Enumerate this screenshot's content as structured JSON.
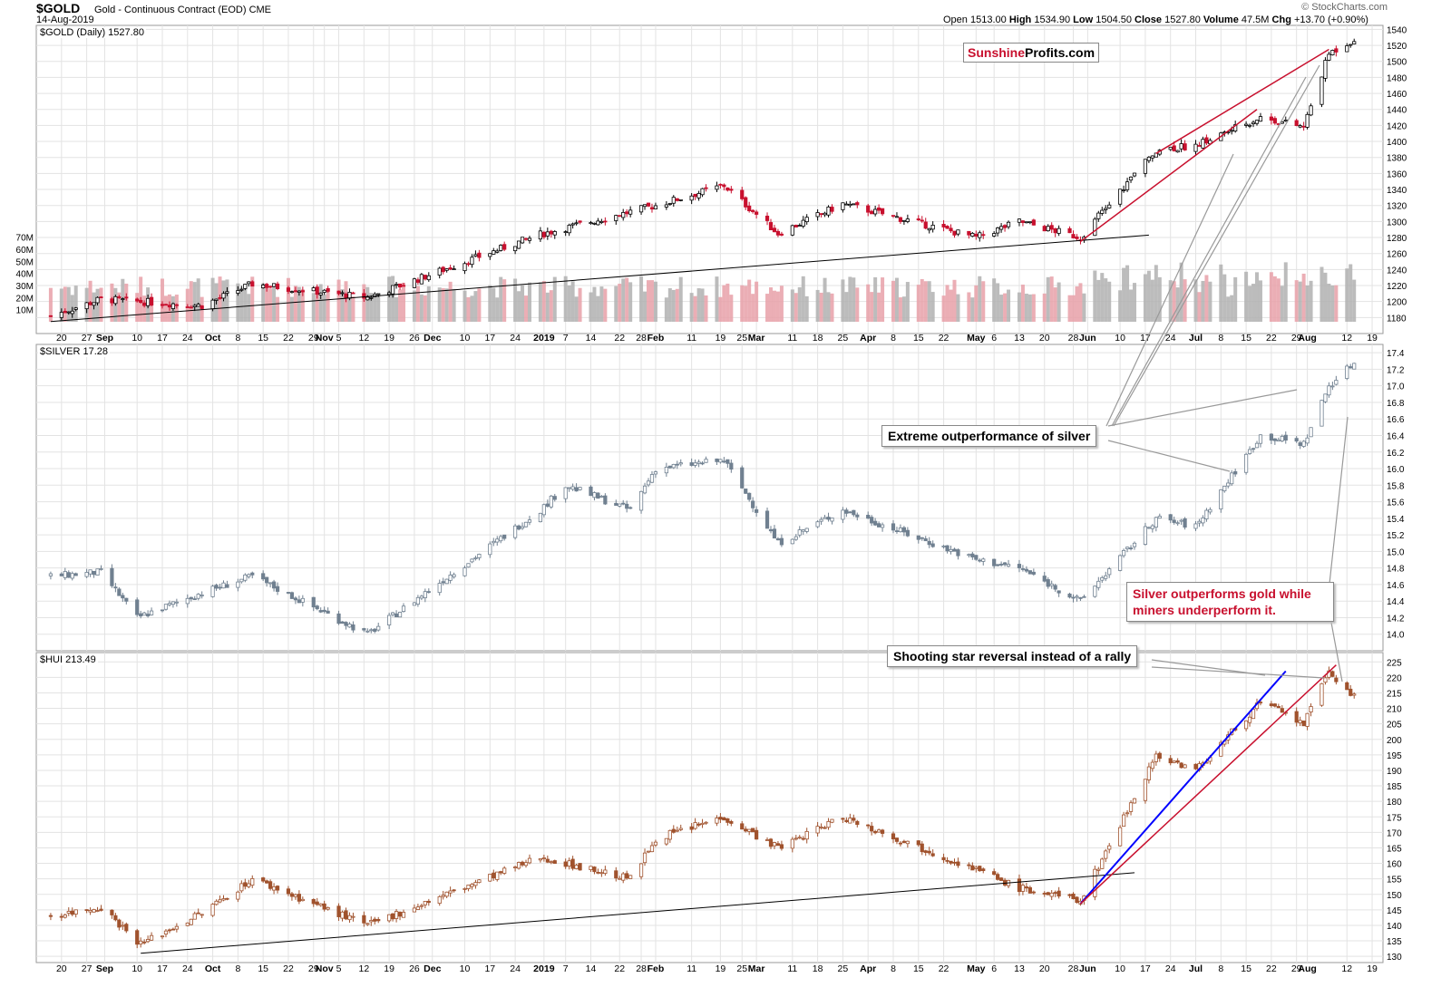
{
  "header": {
    "ticker": "$GOLD",
    "description": "Gold - Continuous Contract (EOD)",
    "exchange": "CME",
    "date": "14-Aug-2019",
    "ohlc": {
      "open_label": "Open",
      "open": "1513.00",
      "high_label": "High",
      "high": "1534.90",
      "low_label": "Low",
      "low": "1504.50",
      "close_label": "Close",
      "close": "1527.80",
      "volume_label": "Volume",
      "volume": "47.5M",
      "chg_label": "Chg",
      "chg": "+13.70 (+0.90%)"
    },
    "credit": "© StockCharts.com"
  },
  "logo": {
    "part1": "Sunshine",
    "part2": "Profits.com"
  },
  "annotations": {
    "silver_outperformance": "Extreme outperformance of silver",
    "silver_vs_miners": "Silver outperforms gold while miners underperform it.",
    "shooting_star": "Shooting star reversal instead of a rally"
  },
  "colors": {
    "up": "#ffffff",
    "down_gold": "#c8102e",
    "silver": "#708090",
    "hui": "#a0522d",
    "trend_red": "#c8102e",
    "trend_blue": "#0000ff",
    "trend_black": "#000000",
    "grid": "#e3e3e3",
    "vol_red": "#e8a0a8",
    "vol_gray": "#b0b0b0"
  },
  "x_axis": {
    "labels": [
      "20",
      "27",
      "Sep",
      "10",
      "17",
      "24",
      "Oct",
      "8",
      "15",
      "22",
      "29",
      "Nov",
      "5",
      "12",
      "19",
      "26",
      "Dec",
      "10",
      "17",
      "24",
      "2019",
      "7",
      "14",
      "22",
      "28",
      "Feb",
      "11",
      "19",
      "25",
      "Mar",
      "11",
      "18",
      "25",
      "Apr",
      "8",
      "15",
      "22",
      "May",
      "6",
      "13",
      "20",
      "28",
      "Jun",
      "10",
      "17",
      "24",
      "Jul",
      "8",
      "15",
      "22",
      "29",
      "Aug",
      "12",
      "19"
    ],
    "bold": [
      "Sep",
      "Oct",
      "Nov",
      "Dec",
      "2019",
      "Feb",
      "Mar",
      "Apr",
      "May",
      "Jun",
      "Jul",
      "Aug"
    ]
  },
  "chart_data": [
    {
      "type": "candlestick",
      "title": "$GOLD (Daily) 1527.80",
      "ylim": [
        1160,
        1545
      ],
      "yticks": [
        1180,
        1200,
        1220,
        1240,
        1260,
        1280,
        1300,
        1320,
        1340,
        1360,
        1380,
        1400,
        1420,
        1440,
        1460,
        1480,
        1500,
        1520,
        1540
      ],
      "volume_ticks": [
        "10M",
        "20M",
        "30M",
        "40M",
        "50M",
        "60M",
        "70M"
      ],
      "volume_range_m": [
        0,
        75
      ],
      "anchors": [
        {
          "x": "2018-08-17",
          "close": 1182
        },
        {
          "x": "2018-08-31",
          "close": 1203
        },
        {
          "x": "2018-09-28",
          "close": 1195
        },
        {
          "x": "2018-10-12",
          "close": 1222
        },
        {
          "x": "2018-11-13",
          "close": 1205
        },
        {
          "x": "2018-12-31",
          "close": 1284
        },
        {
          "x": "2019-02-01",
          "close": 1320
        },
        {
          "x": "2019-02-20",
          "close": 1345
        },
        {
          "x": "2019-03-07",
          "close": 1285
        },
        {
          "x": "2019-03-25",
          "close": 1322
        },
        {
          "x": "2019-05-01",
          "close": 1280
        },
        {
          "x": "2019-05-13",
          "close": 1300
        },
        {
          "x": "2019-05-30",
          "close": 1280
        },
        {
          "x": "2019-06-20",
          "close": 1390
        },
        {
          "x": "2019-07-01",
          "close": 1395
        },
        {
          "x": "2019-07-19",
          "close": 1430
        },
        {
          "x": "2019-07-31",
          "close": 1418
        },
        {
          "x": "2019-08-07",
          "close": 1510
        },
        {
          "x": "2019-08-14",
          "close": 1527.8
        }
      ]
    },
    {
      "type": "candlestick",
      "title": "$SILVER 17.28",
      "ylim": [
        13.8,
        17.5
      ],
      "yticks": [
        14.0,
        14.2,
        14.4,
        14.6,
        14.8,
        15.0,
        15.2,
        15.4,
        15.6,
        15.8,
        16.0,
        16.2,
        16.4,
        16.6,
        16.8,
        17.0,
        17.2,
        17.4
      ],
      "anchors": [
        {
          "x": "2018-08-17",
          "close": 14.7
        },
        {
          "x": "2018-08-31",
          "close": 14.75
        },
        {
          "x": "2018-09-10",
          "close": 14.2
        },
        {
          "x": "2018-09-28",
          "close": 14.5
        },
        {
          "x": "2018-10-12",
          "close": 14.7
        },
        {
          "x": "2018-11-13",
          "close": 14.0
        },
        {
          "x": "2018-12-31",
          "close": 15.5
        },
        {
          "x": "2019-01-07",
          "close": 15.8
        },
        {
          "x": "2019-01-25",
          "close": 15.5
        },
        {
          "x": "2019-02-01",
          "close": 16.0
        },
        {
          "x": "2019-02-20",
          "close": 16.1
        },
        {
          "x": "2019-03-07",
          "close": 15.1
        },
        {
          "x": "2019-03-25",
          "close": 15.5
        },
        {
          "x": "2019-05-01",
          "close": 14.9
        },
        {
          "x": "2019-05-13",
          "close": 14.8
        },
        {
          "x": "2019-05-30",
          "close": 14.4
        },
        {
          "x": "2019-06-20",
          "close": 15.4
        },
        {
          "x": "2019-07-01",
          "close": 15.3
        },
        {
          "x": "2019-07-19",
          "close": 16.4
        },
        {
          "x": "2019-07-31",
          "close": 16.3
        },
        {
          "x": "2019-08-07",
          "close": 17.0
        },
        {
          "x": "2019-08-14",
          "close": 17.28
        }
      ]
    },
    {
      "type": "candlestick",
      "title": "$HUI 213.49",
      "ylim": [
        128,
        228
      ],
      "yticks": [
        130,
        135,
        140,
        145,
        150,
        155,
        160,
        165,
        170,
        175,
        180,
        185,
        190,
        195,
        200,
        205,
        210,
        215,
        220,
        225
      ],
      "anchors": [
        {
          "x": "2018-08-17",
          "close": 143
        },
        {
          "x": "2018-08-31",
          "close": 146
        },
        {
          "x": "2018-09-11",
          "close": 134
        },
        {
          "x": "2018-09-28",
          "close": 144
        },
        {
          "x": "2018-10-12",
          "close": 155
        },
        {
          "x": "2018-11-13",
          "close": 140
        },
        {
          "x": "2018-12-31",
          "close": 162
        },
        {
          "x": "2019-01-25",
          "close": 155
        },
        {
          "x": "2019-02-01",
          "close": 168
        },
        {
          "x": "2019-02-20",
          "close": 175
        },
        {
          "x": "2019-03-07",
          "close": 165
        },
        {
          "x": "2019-03-25",
          "close": 175
        },
        {
          "x": "2019-05-01",
          "close": 158
        },
        {
          "x": "2019-05-13",
          "close": 152
        },
        {
          "x": "2019-05-30",
          "close": 148
        },
        {
          "x": "2019-06-20",
          "close": 195
        },
        {
          "x": "2019-07-01",
          "close": 190
        },
        {
          "x": "2019-07-19",
          "close": 212
        },
        {
          "x": "2019-07-31",
          "close": 205
        },
        {
          "x": "2019-08-07",
          "close": 222
        },
        {
          "x": "2019-08-14",
          "close": 213.49
        }
      ]
    }
  ]
}
